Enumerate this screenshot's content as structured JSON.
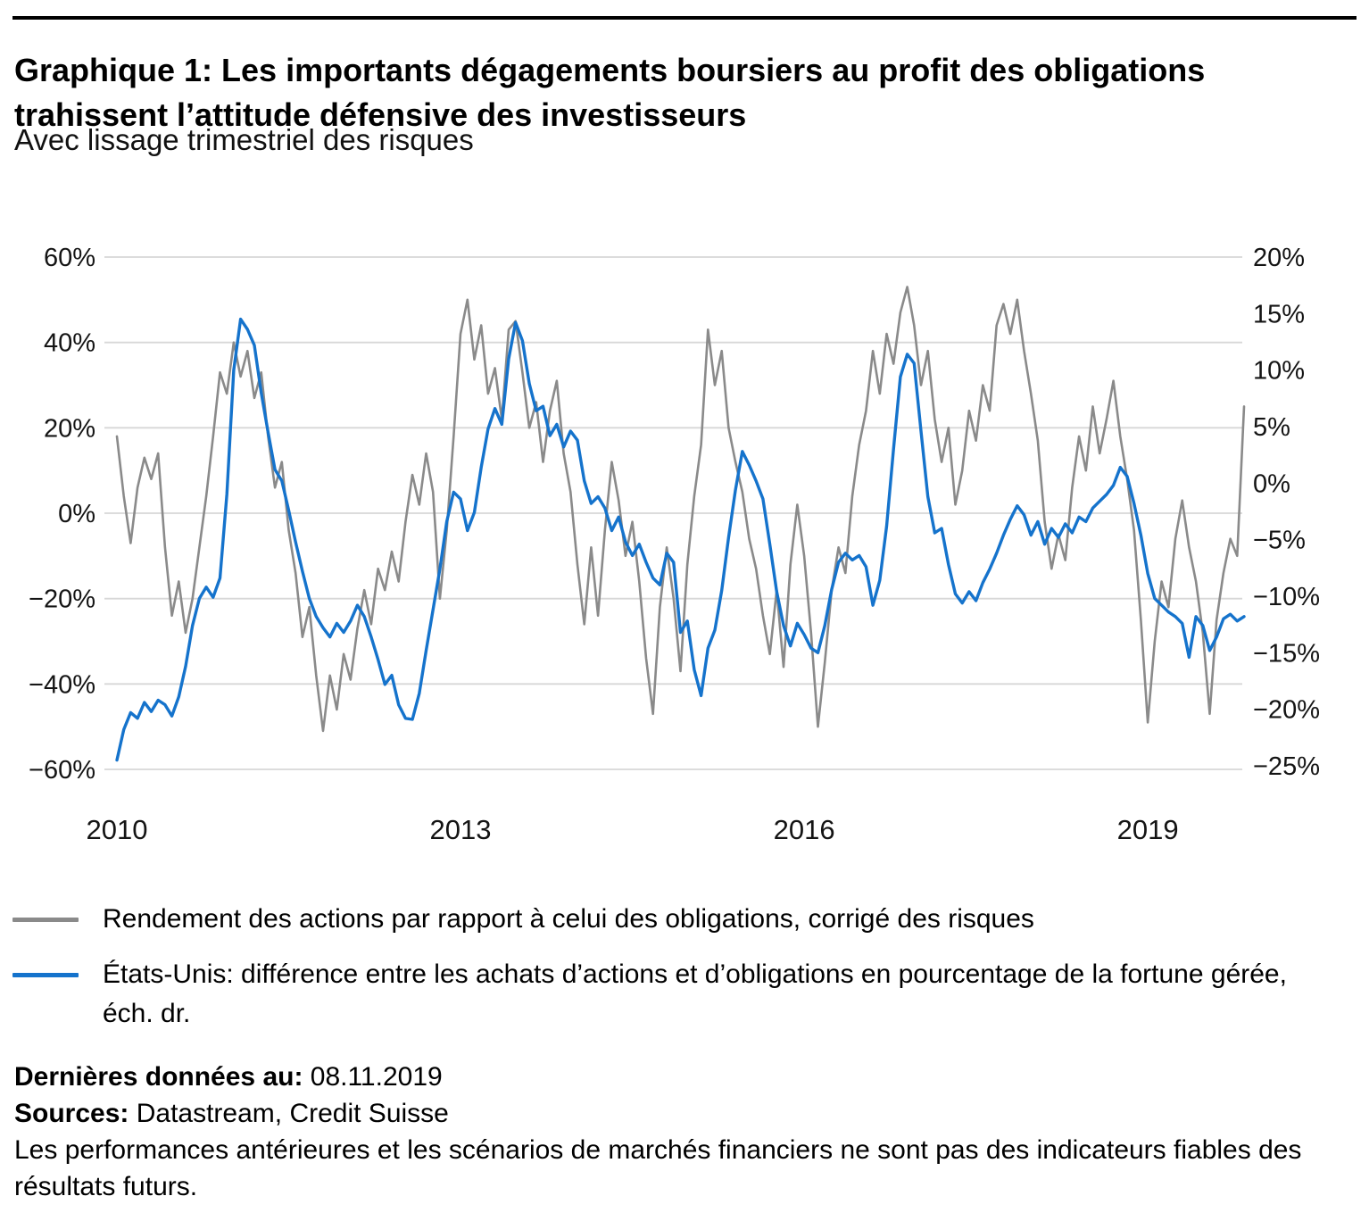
{
  "header": {
    "title": "Graphique 1: Les importants dégagements boursiers au profit des obligations trahissent l’attitude défensive des investisseurs",
    "subtitle": "Avec lissage trimestriel des risques"
  },
  "chart_data": {
    "type": "line",
    "title": "Graphique 1: Les importants dégagements boursiers au profit des obligations trahissent l’attitude défensive des investisseurs",
    "subtitle": "Avec lissage trimestriel des risques",
    "xlabel": "",
    "ylabel_left": "",
    "ylabel_right": "",
    "grid": "horizontal",
    "legend_position": "bottom-left",
    "x_axis": {
      "ticks": [
        2010,
        2013,
        2016,
        2019
      ],
      "tick_labels": [
        "2010",
        "2013",
        "2016",
        "2019"
      ],
      "range_start": 2010.0,
      "range_end": 2019.86
    },
    "left_axis": {
      "unit": "%",
      "range": [
        -60,
        60
      ],
      "ticks": [
        60,
        40,
        20,
        0,
        -20,
        -40,
        -60
      ],
      "tick_labels": [
        "60%",
        "40%",
        "20%",
        "0%",
        "−20%",
        "−40%",
        "−60%"
      ]
    },
    "right_axis": {
      "unit": "%",
      "range": [
        -25,
        20
      ],
      "ticks": [
        20,
        15,
        10,
        5,
        0,
        -5,
        -10,
        -15,
        -20,
        -25
      ],
      "tick_labels": [
        "20%",
        "15%",
        "10%",
        "5%",
        "0%",
        "−5%",
        "−10%",
        "−15%",
        "−20%",
        "−25%"
      ]
    },
    "x_start": 2010.0,
    "x_step": 0.06,
    "points": 165,
    "series": [
      {
        "name": "Rendement des actions par rapport à celui des obligations, corrigé des risques",
        "axis": "left",
        "color": "#8A8A8A",
        "stroke_width": 2.6,
        "values": [
          18,
          4,
          -7,
          6,
          13,
          8,
          14,
          -8,
          -24,
          -16,
          -28,
          -20,
          -8,
          4,
          18,
          33,
          28,
          40,
          32,
          38,
          27,
          33,
          18,
          6,
          12,
          -4,
          -14,
          -29,
          -22,
          -38,
          -51,
          -38,
          -46,
          -33,
          -39,
          -27,
          -18,
          -26,
          -13,
          -18,
          -9,
          -16,
          -2,
          9,
          2,
          14,
          5,
          -20,
          -4,
          18,
          42,
          50,
          36,
          44,
          28,
          34,
          22,
          43,
          45,
          33,
          20,
          26,
          12,
          24,
          31,
          14,
          5,
          -12,
          -26,
          -8,
          -24,
          -4,
          12,
          3,
          -10,
          -2,
          -16,
          -34,
          -47,
          -22,
          -8,
          -20,
          -37,
          -12,
          4,
          16,
          43,
          30,
          38,
          20,
          12,
          5,
          -6,
          -13,
          -24,
          -33,
          -18,
          -36,
          -12,
          2,
          -10,
          -28,
          -50,
          -35,
          -18,
          -8,
          -14,
          4,
          16,
          24,
          38,
          28,
          42,
          35,
          47,
          53,
          44,
          30,
          38,
          22,
          12,
          20,
          2,
          10,
          24,
          17,
          30,
          24,
          44,
          49,
          42,
          50,
          38,
          28,
          17,
          -2,
          -13,
          -5,
          -11,
          6,
          18,
          10,
          25,
          14,
          22,
          31,
          18,
          8,
          -4,
          -25,
          -49,
          -30,
          -16,
          -22,
          -6,
          3,
          -8,
          -16,
          -28,
          -47,
          -25,
          -14,
          -6,
          -10,
          25
        ]
      },
      {
        "name": "États-Unis: différence entre les achats d’actions et d’obligations en pourcentage de la fortune gérée, éch. dr.",
        "axis": "right",
        "color": "#1573CC",
        "stroke_width": 3.4,
        "values": [
          -24.5,
          -21.8,
          -20.3,
          -20.8,
          -19.4,
          -20.2,
          -19.2,
          -19.6,
          -20.6,
          -18.9,
          -16.2,
          -12.6,
          -10.2,
          -9.2,
          -10.1,
          -8.4,
          -1.0,
          10.0,
          14.5,
          13.6,
          12.2,
          8.0,
          4.5,
          1.2,
          0.2,
          -2.4,
          -5.2,
          -7.8,
          -10.2,
          -11.8,
          -12.8,
          -13.6,
          -12.4,
          -13.2,
          -12.2,
          -10.8,
          -11.8,
          -13.6,
          -15.6,
          -17.8,
          -17.0,
          -19.6,
          -20.8,
          -20.9,
          -18.6,
          -14.8,
          -11.2,
          -7.6,
          -3.4,
          -0.8,
          -1.4,
          -4.2,
          -2.6,
          1.4,
          4.8,
          6.6,
          5.2,
          11.0,
          14.2,
          12.6,
          8.8,
          6.4,
          6.8,
          4.2,
          5.2,
          3.2,
          4.6,
          3.8,
          0.2,
          -1.8,
          -1.2,
          -2.2,
          -4.2,
          -3.0,
          -5.2,
          -6.4,
          -5.4,
          -7.0,
          -8.4,
          -9.0,
          -6.2,
          -7.0,
          -13.2,
          -12.2,
          -16.5,
          -18.8,
          -14.6,
          -13.0,
          -9.5,
          -4.8,
          -0.6,
          2.8,
          1.6,
          0.2,
          -1.4,
          -5.4,
          -9.6,
          -12.6,
          -14.4,
          -12.4,
          -13.4,
          -14.6,
          -15.0,
          -12.6,
          -9.4,
          -7.0,
          -6.2,
          -6.8,
          -6.4,
          -7.4,
          -10.8,
          -8.6,
          -3.8,
          3.0,
          9.4,
          11.4,
          10.6,
          4.6,
          -1.2,
          -4.4,
          -4.0,
          -7.2,
          -9.8,
          -10.6,
          -9.6,
          -10.4,
          -8.8,
          -7.6,
          -6.2,
          -4.6,
          -3.2,
          -2.0,
          -2.8,
          -4.6,
          -3.4,
          -5.4,
          -4.0,
          -4.8,
          -3.6,
          -4.4,
          -3.0,
          -3.4,
          -2.2,
          -1.6,
          -1.0,
          -0.2,
          1.4,
          0.6,
          -1.8,
          -4.6,
          -8.0,
          -10.2,
          -10.8,
          -11.4,
          -11.8,
          -12.4,
          -15.4,
          -11.8,
          -12.6,
          -14.8,
          -13.6,
          -12.0,
          -11.6,
          -12.2,
          -11.8
        ]
      }
    ],
    "colors": {
      "gray_series": "#8A8A8A",
      "blue_series": "#1573CC",
      "gridline": "#D7D7D7"
    }
  },
  "legend": {
    "items": [
      {
        "label": "Rendement des actions par rapport à celui des obligations, corrigé des risques",
        "lines": [
          "Rendement des actions par rapport à celui des obligations, corrigé des risques"
        ],
        "color": "#8A8A8A"
      },
      {
        "label": "États-Unis: différence entre les achats d’actions et d’obligations en pourcentage de la fortune gérée, éch. dr.",
        "lines": [
          "États-Unis: différence entre les achats d’actions et d’obligations en pourcentage de la fortune gérée,",
          "éch. dr."
        ],
        "color": "#1573CC"
      }
    ]
  },
  "footer": {
    "last_data_label": "Dernières données au:",
    "last_data_value": " 08.11.2019",
    "sources_label": "Sources:",
    "sources_value": " Datastream, Credit Suisse",
    "disclaimer": "Les performances antérieures et les scénarios de marchés financiers ne sont pas des indicateurs fiables des résultats futurs."
  }
}
